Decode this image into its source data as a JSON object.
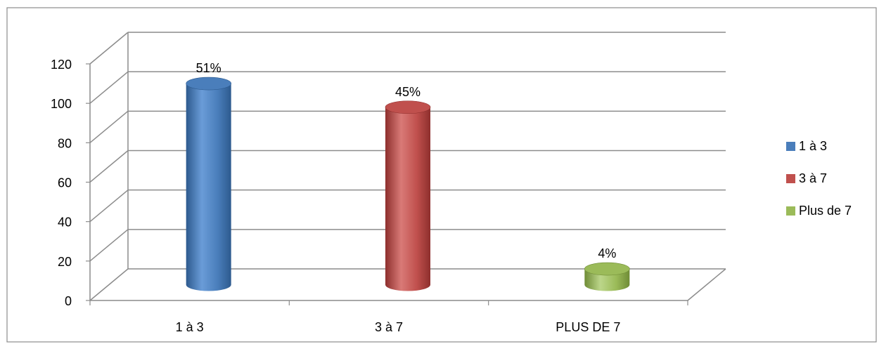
{
  "chart_data": {
    "type": "bar",
    "categories": [
      "1 à 3",
      "3 à 7",
      "PLUS DE 7"
    ],
    "series": [
      {
        "name": "1 à 3",
        "color": "#4a7ebb",
        "dark": "#2d5a8e",
        "light": "#6a9cd8",
        "values": [
          102,
          null,
          null
        ],
        "label": "51%"
      },
      {
        "name": "3 à 7",
        "color": "#c0504d",
        "dark": "#8e2f2d",
        "light": "#d97a77",
        "values": [
          null,
          90,
          null
        ],
        "label": "45%"
      },
      {
        "name": "Plus de 7",
        "color": "#9bbb59",
        "dark": "#6f8c36",
        "light": "#bcd68a",
        "values": [
          null,
          null,
          8
        ],
        "label": "4%"
      }
    ],
    "ylim": [
      0,
      120
    ],
    "yticks": [
      0,
      20,
      40,
      60,
      80,
      100,
      120
    ],
    "grid": true,
    "legend_position": "right"
  }
}
